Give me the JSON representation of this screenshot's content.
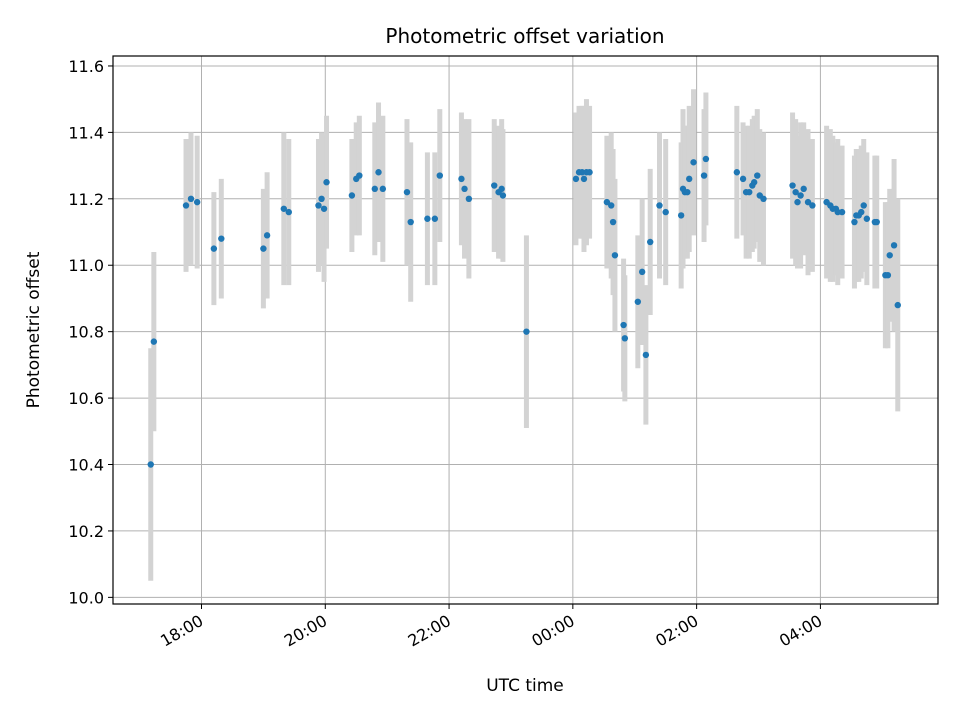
{
  "chart_data": {
    "type": "scatter",
    "title": "Photometric offset variation",
    "xlabel": "UTC time",
    "ylabel": "Photometric offset",
    "grid": true,
    "ylim": [
      9.98,
      11.63
    ],
    "xlim_hours": [
      16.57,
      29.9
    ],
    "yticks": [
      10.0,
      10.2,
      10.4,
      10.6,
      10.8,
      11.0,
      11.2,
      11.4,
      11.6
    ],
    "ytick_labels": [
      "10.0",
      "10.2",
      "10.4",
      "10.6",
      "10.8",
      "11.0",
      "11.2",
      "11.4",
      "11.6"
    ],
    "xticks_hours": [
      18,
      20,
      22,
      24,
      26,
      28
    ],
    "xtick_labels": [
      "18:00",
      "20:00",
      "22:00",
      "00:00",
      "02:00",
      "04:00"
    ],
    "marker_color": "#1f77b4",
    "errorbar_color": "#d3d3d3",
    "x": [
      17.18,
      17.23,
      17.75,
      17.83,
      17.93,
      18.2,
      18.32,
      19.0,
      19.06,
      19.33,
      19.41,
      19.89,
      19.94,
      19.98,
      20.02,
      20.43,
      20.5,
      20.55,
      20.8,
      20.86,
      20.93,
      21.32,
      21.38,
      21.65,
      21.77,
      21.85,
      22.2,
      22.25,
      22.32,
      22.73,
      22.8,
      22.85,
      22.87,
      23.25,
      24.05,
      24.1,
      24.15,
      24.18,
      24.22,
      24.27,
      24.55,
      24.62,
      24.65,
      24.68,
      24.82,
      24.84,
      25.05,
      25.12,
      25.18,
      25.25,
      25.4,
      25.5,
      25.75,
      25.78,
      25.81,
      25.85,
      25.88,
      25.95,
      26.12,
      26.15,
      26.65,
      26.75,
      26.8,
      26.85,
      26.9,
      26.93,
      26.98,
      27.02,
      27.08,
      27.55,
      27.6,
      27.63,
      27.68,
      27.73,
      27.8,
      27.87,
      28.1,
      28.16,
      28.2,
      28.25,
      28.28,
      28.35,
      28.55,
      28.58,
      28.62,
      28.66,
      28.7,
      28.75,
      28.88,
      28.91,
      29.05,
      29.09,
      29.12,
      29.19,
      29.25
    ],
    "y": [
      10.4,
      10.77,
      11.18,
      11.2,
      11.19,
      11.05,
      11.08,
      11.05,
      11.09,
      11.17,
      11.16,
      11.18,
      11.2,
      11.17,
      11.25,
      11.21,
      11.26,
      11.27,
      11.23,
      11.28,
      11.23,
      11.22,
      11.13,
      11.14,
      11.14,
      11.27,
      11.26,
      11.23,
      11.2,
      11.24,
      11.22,
      11.23,
      11.21,
      10.8,
      11.26,
      11.28,
      11.28,
      11.26,
      11.28,
      11.28,
      11.19,
      11.18,
      11.13,
      11.03,
      10.82,
      10.78,
      10.89,
      10.98,
      10.73,
      11.07,
      11.18,
      11.16,
      11.15,
      11.23,
      11.22,
      11.22,
      11.26,
      11.31,
      11.27,
      11.32,
      11.28,
      11.26,
      11.22,
      11.22,
      11.24,
      11.25,
      11.27,
      11.21,
      11.2,
      11.24,
      11.22,
      11.19,
      11.21,
      11.23,
      11.19,
      11.18,
      11.19,
      11.18,
      11.17,
      11.17,
      11.16,
      11.16,
      11.13,
      11.15,
      11.15,
      11.16,
      11.18,
      11.14,
      11.13,
      11.13,
      10.97,
      10.97,
      11.03,
      11.06,
      10.88
    ],
    "yerr": [
      0.35,
      0.27,
      0.2,
      0.2,
      0.2,
      0.17,
      0.18,
      0.18,
      0.19,
      0.23,
      0.22,
      0.2,
      0.2,
      0.22,
      0.2,
      0.17,
      0.17,
      0.18,
      0.2,
      0.21,
      0.22,
      0.22,
      0.24,
      0.2,
      0.2,
      0.2,
      0.2,
      0.21,
      0.24,
      0.2,
      0.2,
      0.21,
      0.2,
      0.29,
      0.2,
      0.2,
      0.2,
      0.22,
      0.22,
      0.2,
      0.2,
      0.22,
      0.22,
      0.23,
      0.2,
      0.19,
      0.2,
      0.22,
      0.21,
      0.22,
      0.22,
      0.22,
      0.22,
      0.24,
      0.2,
      0.2,
      0.22,
      0.22,
      0.2,
      0.2,
      0.2,
      0.17,
      0.2,
      0.2,
      0.2,
      0.2,
      0.2,
      0.2,
      0.2,
      0.22,
      0.22,
      0.2,
      0.22,
      0.2,
      0.22,
      0.2,
      0.23,
      0.23,
      0.22,
      0.2,
      0.22,
      0.2,
      0.2,
      0.2,
      0.2,
      0.2,
      0.2,
      0.2,
      0.2,
      0.2,
      0.22,
      0.22,
      0.2,
      0.26,
      0.32
    ]
  }
}
